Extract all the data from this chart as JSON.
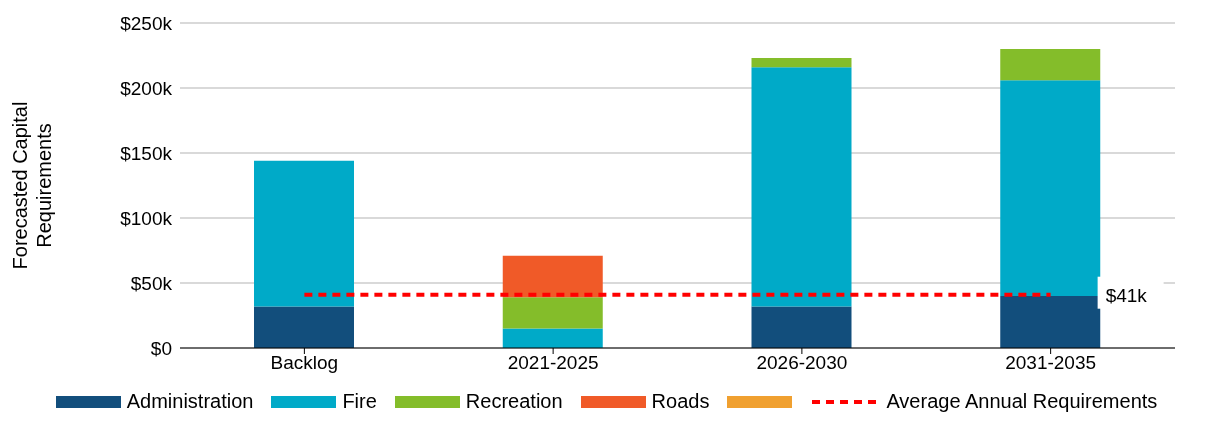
{
  "chart_data": {
    "type": "bar",
    "stacked": true,
    "ylabel": "Forecasted Capital Requirements",
    "categories": [
      "Backlog",
      "2021-2025",
      "2026-2030",
      "2031-2035"
    ],
    "series": [
      {
        "name": "Administration",
        "color": "#124e7c",
        "values": [
          32,
          0,
          32,
          40
        ]
      },
      {
        "name": "Fire",
        "color": "#00aac8",
        "values": [
          112,
          15,
          184,
          166
        ]
      },
      {
        "name": "Recreation",
        "color": "#84bd2a",
        "values": [
          0,
          24,
          7,
          24
        ]
      },
      {
        "name": "Roads",
        "color": "#f05a28",
        "values": [
          0,
          32,
          0,
          0
        ]
      },
      {
        "color": "#f0a030",
        "values": [
          0,
          0,
          0,
          0
        ]
      }
    ],
    "ylim": [
      0,
      250
    ],
    "yticks": [
      {
        "value": 0,
        "label": "$0"
      },
      {
        "value": 50,
        "label": "$50k"
      },
      {
        "value": 100,
        "label": "$100k"
      },
      {
        "value": 150,
        "label": "$150k"
      },
      {
        "value": 200,
        "label": "$200k"
      },
      {
        "value": 250,
        "label": "$250k"
      }
    ],
    "grid": "y",
    "legend": "bottom",
    "annotations": [
      {
        "text": "$41k",
        "x": "2031-2035",
        "y": 41
      }
    ],
    "ref_lines": [
      {
        "axis": "y",
        "value": 41,
        "label": "Average Annual Requirements",
        "color": "#ff0000",
        "line_style": "dashed"
      }
    ]
  }
}
